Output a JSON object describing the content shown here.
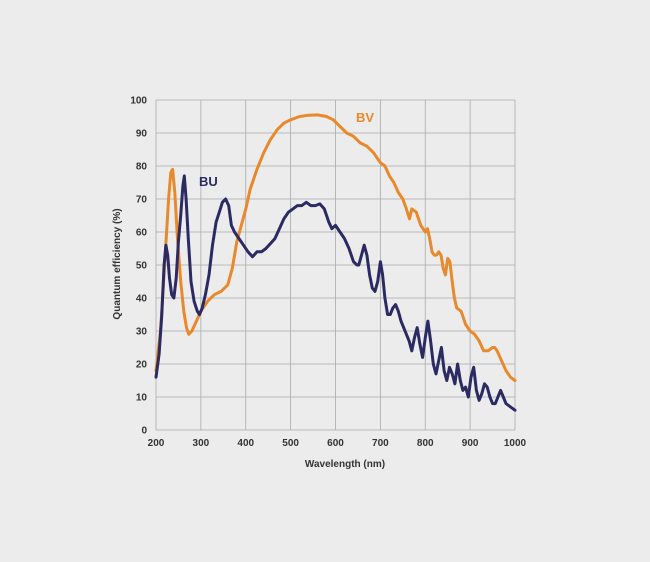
{
  "chart_data": {
    "type": "line",
    "title": "",
    "xlabel": "Wavelength (nm)",
    "ylabel": "Quantum efficiency (%)",
    "xlim": [
      200,
      1000
    ],
    "ylim": [
      0,
      100
    ],
    "xticks": [
      200,
      300,
      400,
      500,
      600,
      700,
      800,
      900,
      1000
    ],
    "yticks": [
      0,
      10,
      20,
      30,
      40,
      50,
      60,
      70,
      80,
      90,
      100
    ],
    "grid": true,
    "legend": "inline labels",
    "colors": {
      "BV": "#e8892b",
      "BU": "#2b2a63",
      "grid": "#aaaaaa",
      "background": "#ececec"
    },
    "series": [
      {
        "name": "BV",
        "points": [
          [
            200,
            18
          ],
          [
            210,
            30
          ],
          [
            220,
            52
          ],
          [
            228,
            70
          ],
          [
            233,
            78
          ],
          [
            237,
            79
          ],
          [
            242,
            72
          ],
          [
            248,
            58
          ],
          [
            255,
            45
          ],
          [
            262,
            36
          ],
          [
            268,
            31
          ],
          [
            273,
            29
          ],
          [
            280,
            30
          ],
          [
            290,
            33
          ],
          [
            300,
            36
          ],
          [
            315,
            39
          ],
          [
            330,
            41
          ],
          [
            345,
            42
          ],
          [
            360,
            44
          ],
          [
            370,
            49
          ],
          [
            380,
            57
          ],
          [
            390,
            62
          ],
          [
            400,
            67
          ],
          [
            410,
            73
          ],
          [
            425,
            79
          ],
          [
            440,
            84
          ],
          [
            455,
            88
          ],
          [
            470,
            91
          ],
          [
            485,
            93
          ],
          [
            500,
            94
          ],
          [
            520,
            95
          ],
          [
            540,
            95.4
          ],
          [
            560,
            95.5
          ],
          [
            580,
            95
          ],
          [
            595,
            94
          ],
          [
            610,
            92
          ],
          [
            625,
            90
          ],
          [
            640,
            89
          ],
          [
            655,
            87
          ],
          [
            670,
            86
          ],
          [
            685,
            84
          ],
          [
            700,
            81
          ],
          [
            710,
            80
          ],
          [
            720,
            77
          ],
          [
            730,
            75
          ],
          [
            740,
            72
          ],
          [
            750,
            70
          ],
          [
            758,
            67
          ],
          [
            765,
            64
          ],
          [
            770,
            67
          ],
          [
            780,
            66
          ],
          [
            790,
            62
          ],
          [
            800,
            60
          ],
          [
            805,
            61
          ],
          [
            810,
            58
          ],
          [
            815,
            54
          ],
          [
            820,
            53
          ],
          [
            825,
            53
          ],
          [
            830,
            54
          ],
          [
            835,
            53
          ],
          [
            840,
            49
          ],
          [
            845,
            47
          ],
          [
            850,
            52
          ],
          [
            855,
            51
          ],
          [
            860,
            45
          ],
          [
            865,
            40
          ],
          [
            870,
            37
          ],
          [
            880,
            36
          ],
          [
            890,
            32
          ],
          [
            900,
            30
          ],
          [
            910,
            29
          ],
          [
            920,
            27
          ],
          [
            930,
            24
          ],
          [
            940,
            24
          ],
          [
            950,
            25
          ],
          [
            955,
            25
          ],
          [
            960,
            24
          ],
          [
            970,
            21
          ],
          [
            980,
            18
          ],
          [
            990,
            16
          ],
          [
            1000,
            15
          ]
        ]
      },
      {
        "name": "BU",
        "points": [
          [
            200,
            16
          ],
          [
            207,
            23
          ],
          [
            213,
            35
          ],
          [
            218,
            50
          ],
          [
            222,
            56
          ],
          [
            226,
            53
          ],
          [
            230,
            46
          ],
          [
            235,
            41
          ],
          [
            240,
            40
          ],
          [
            245,
            46
          ],
          [
            250,
            57
          ],
          [
            255,
            65
          ],
          [
            260,
            74
          ],
          [
            263,
            77
          ],
          [
            267,
            70
          ],
          [
            272,
            58
          ],
          [
            278,
            45
          ],
          [
            285,
            39
          ],
          [
            292,
            36
          ],
          [
            297,
            35
          ],
          [
            303,
            37
          ],
          [
            310,
            41
          ],
          [
            318,
            47
          ],
          [
            326,
            56
          ],
          [
            334,
            63
          ],
          [
            341,
            66
          ],
          [
            348,
            69
          ],
          [
            355,
            70
          ],
          [
            362,
            68
          ],
          [
            368,
            62
          ],
          [
            375,
            60
          ],
          [
            385,
            58
          ],
          [
            395,
            56
          ],
          [
            405,
            54
          ],
          [
            415,
            52.5
          ],
          [
            425,
            54
          ],
          [
            435,
            54
          ],
          [
            445,
            55
          ],
          [
            455,
            56.5
          ],
          [
            465,
            58
          ],
          [
            475,
            61
          ],
          [
            485,
            64
          ],
          [
            495,
            66
          ],
          [
            505,
            67
          ],
          [
            515,
            68
          ],
          [
            525,
            68
          ],
          [
            535,
            69
          ],
          [
            545,
            68
          ],
          [
            555,
            68
          ],
          [
            565,
            68.5
          ],
          [
            575,
            67
          ],
          [
            585,
            63
          ],
          [
            592,
            61
          ],
          [
            600,
            62
          ],
          [
            610,
            60
          ],
          [
            620,
            58
          ],
          [
            630,
            55
          ],
          [
            640,
            51
          ],
          [
            648,
            50
          ],
          [
            652,
            50
          ],
          [
            658,
            53
          ],
          [
            664,
            56
          ],
          [
            670,
            53
          ],
          [
            676,
            47
          ],
          [
            682,
            43
          ],
          [
            688,
            42
          ],
          [
            694,
            45
          ],
          [
            700,
            51
          ],
          [
            705,
            47
          ],
          [
            710,
            40
          ],
          [
            716,
            35
          ],
          [
            722,
            35
          ],
          [
            728,
            37
          ],
          [
            734,
            38
          ],
          [
            740,
            36
          ],
          [
            746,
            33
          ],
          [
            752,
            31
          ],
          [
            758,
            29
          ],
          [
            764,
            27
          ],
          [
            770,
            24
          ],
          [
            776,
            28
          ],
          [
            782,
            31
          ],
          [
            788,
            26
          ],
          [
            794,
            22
          ],
          [
            800,
            28
          ],
          [
            806,
            33
          ],
          [
            812,
            27
          ],
          [
            818,
            20
          ],
          [
            824,
            17
          ],
          [
            830,
            21
          ],
          [
            836,
            25
          ],
          [
            842,
            18
          ],
          [
            848,
            15
          ],
          [
            854,
            19
          ],
          [
            860,
            17
          ],
          [
            866,
            14
          ],
          [
            872,
            20
          ],
          [
            878,
            15
          ],
          [
            884,
            12
          ],
          [
            890,
            13
          ],
          [
            896,
            10
          ],
          [
            902,
            16
          ],
          [
            908,
            19
          ],
          [
            914,
            12
          ],
          [
            920,
            9
          ],
          [
            926,
            11
          ],
          [
            932,
            14
          ],
          [
            938,
            13
          ],
          [
            944,
            10
          ],
          [
            950,
            8
          ],
          [
            956,
            8
          ],
          [
            962,
            10
          ],
          [
            968,
            12
          ],
          [
            974,
            10
          ],
          [
            980,
            8
          ],
          [
            990,
            7
          ],
          [
            1000,
            6
          ]
        ]
      }
    ]
  }
}
